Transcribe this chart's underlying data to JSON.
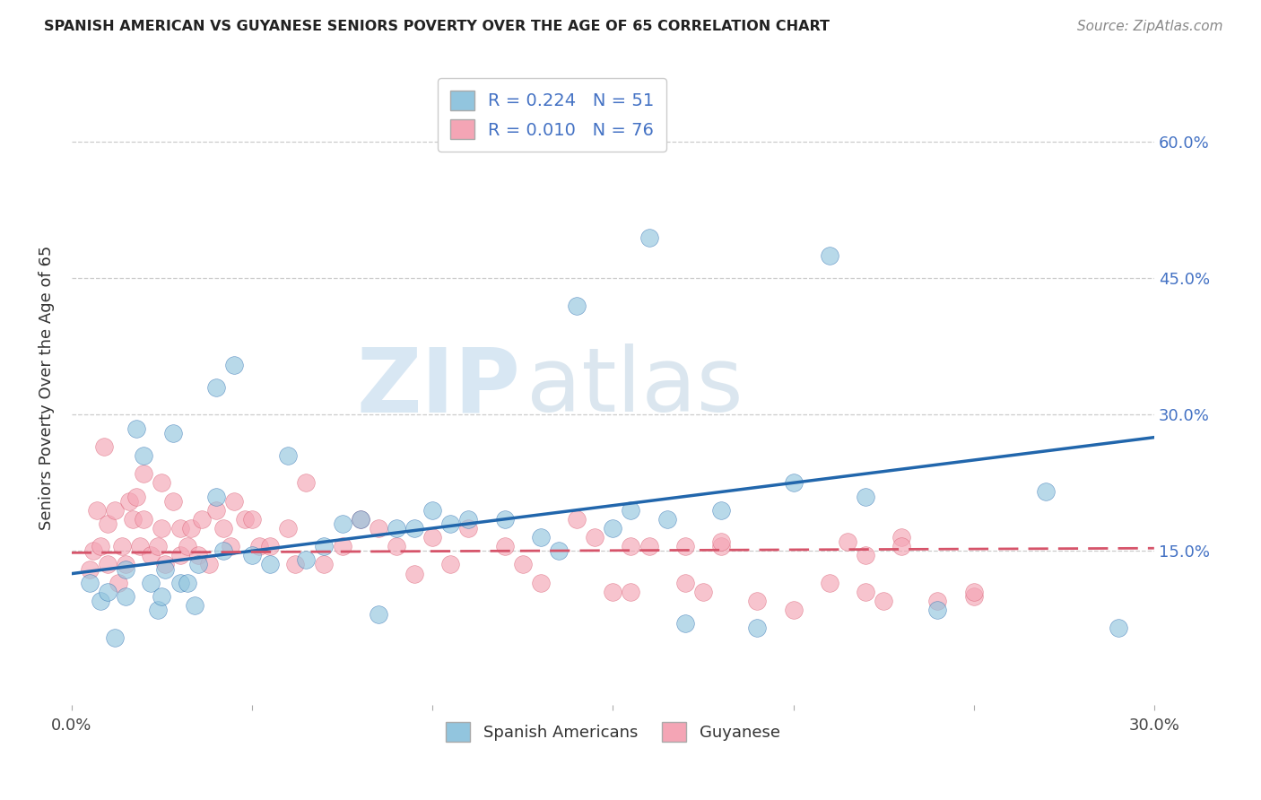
{
  "title": "SPANISH AMERICAN VS GUYANESE SENIORS POVERTY OVER THE AGE OF 65 CORRELATION CHART",
  "source": "Source: ZipAtlas.com",
  "ylabel": "Seniors Poverty Over the Age of 65",
  "xlim": [
    0.0,
    0.3
  ],
  "ylim": [
    -0.02,
    0.68
  ],
  "yticks": [
    0.15,
    0.3,
    0.45,
    0.6
  ],
  "ytick_labels": [
    "15.0%",
    "30.0%",
    "45.0%",
    "60.0%"
  ],
  "blue_R": 0.224,
  "blue_N": 51,
  "pink_R": 0.01,
  "pink_N": 76,
  "blue_color": "#92c5de",
  "pink_color": "#f4a5b5",
  "blue_line_color": "#2166ac",
  "pink_line_color": "#d6546a",
  "legend_label_blue": "Spanish Americans",
  "legend_label_pink": "Guyanese",
  "watermark_zip": "ZIP",
  "watermark_atlas": "atlas",
  "blue_scatter_x": [
    0.005,
    0.008,
    0.01,
    0.012,
    0.015,
    0.015,
    0.018,
    0.02,
    0.022,
    0.024,
    0.025,
    0.026,
    0.028,
    0.03,
    0.032,
    0.034,
    0.035,
    0.04,
    0.04,
    0.042,
    0.045,
    0.05,
    0.055,
    0.06,
    0.065,
    0.07,
    0.075,
    0.08,
    0.085,
    0.09,
    0.095,
    0.1,
    0.105,
    0.11,
    0.12,
    0.13,
    0.135,
    0.14,
    0.15,
    0.155,
    0.16,
    0.165,
    0.17,
    0.18,
    0.19,
    0.2,
    0.21,
    0.22,
    0.24,
    0.27,
    0.29
  ],
  "blue_scatter_y": [
    0.115,
    0.095,
    0.105,
    0.055,
    0.13,
    0.1,
    0.285,
    0.255,
    0.115,
    0.085,
    0.1,
    0.13,
    0.28,
    0.115,
    0.115,
    0.09,
    0.135,
    0.33,
    0.21,
    0.15,
    0.355,
    0.145,
    0.135,
    0.255,
    0.14,
    0.155,
    0.18,
    0.185,
    0.08,
    0.175,
    0.175,
    0.195,
    0.18,
    0.185,
    0.185,
    0.165,
    0.15,
    0.42,
    0.175,
    0.195,
    0.495,
    0.185,
    0.07,
    0.195,
    0.065,
    0.225,
    0.475,
    0.21,
    0.085,
    0.215,
    0.065
  ],
  "pink_scatter_x": [
    0.005,
    0.006,
    0.007,
    0.008,
    0.009,
    0.01,
    0.01,
    0.012,
    0.013,
    0.014,
    0.015,
    0.016,
    0.017,
    0.018,
    0.019,
    0.02,
    0.02,
    0.022,
    0.024,
    0.025,
    0.025,
    0.026,
    0.028,
    0.03,
    0.03,
    0.032,
    0.033,
    0.035,
    0.036,
    0.038,
    0.04,
    0.042,
    0.044,
    0.045,
    0.048,
    0.05,
    0.052,
    0.055,
    0.06,
    0.062,
    0.065,
    0.07,
    0.075,
    0.08,
    0.085,
    0.09,
    0.095,
    0.1,
    0.105,
    0.11,
    0.12,
    0.125,
    0.13,
    0.14,
    0.145,
    0.15,
    0.155,
    0.16,
    0.17,
    0.175,
    0.18,
    0.19,
    0.2,
    0.21,
    0.215,
    0.22,
    0.225,
    0.23,
    0.24,
    0.25,
    0.155,
    0.17,
    0.18,
    0.22,
    0.23,
    0.25
  ],
  "pink_scatter_y": [
    0.13,
    0.15,
    0.195,
    0.155,
    0.265,
    0.135,
    0.18,
    0.195,
    0.115,
    0.155,
    0.135,
    0.205,
    0.185,
    0.21,
    0.155,
    0.235,
    0.185,
    0.145,
    0.155,
    0.225,
    0.175,
    0.135,
    0.205,
    0.175,
    0.145,
    0.155,
    0.175,
    0.145,
    0.185,
    0.135,
    0.195,
    0.175,
    0.155,
    0.205,
    0.185,
    0.185,
    0.155,
    0.155,
    0.175,
    0.135,
    0.225,
    0.135,
    0.155,
    0.185,
    0.175,
    0.155,
    0.125,
    0.165,
    0.135,
    0.175,
    0.155,
    0.135,
    0.115,
    0.185,
    0.165,
    0.105,
    0.105,
    0.155,
    0.115,
    0.105,
    0.155,
    0.095,
    0.085,
    0.115,
    0.16,
    0.105,
    0.095,
    0.165,
    0.095,
    0.1,
    0.155,
    0.155,
    0.16,
    0.145,
    0.155,
    0.105
  ]
}
